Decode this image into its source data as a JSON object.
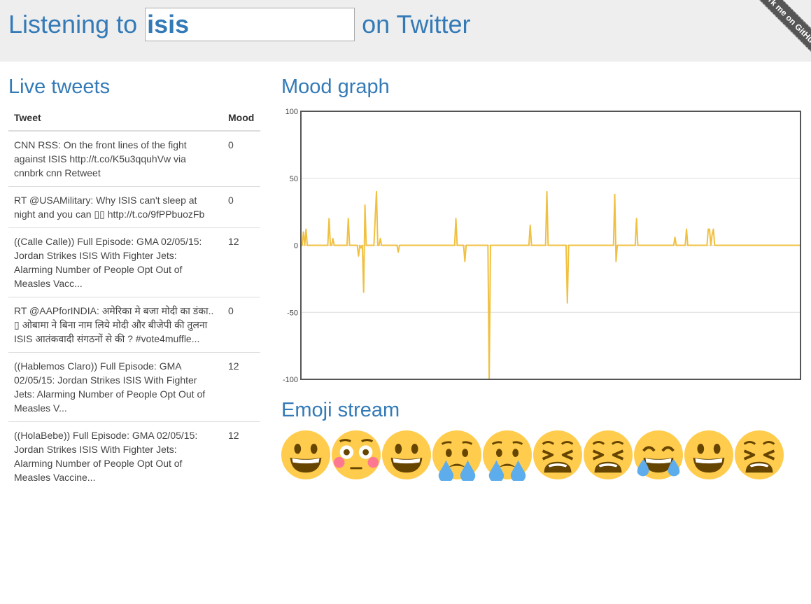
{
  "header": {
    "prefix": "Listening to",
    "topic_value": "isis",
    "suffix": "on Twitter",
    "ribbon_text": "Fork me on GitHub"
  },
  "tweets": {
    "heading": "Live tweets",
    "columns": [
      "Tweet",
      "Mood"
    ],
    "rows": [
      {
        "text": "CNN RSS: On the front lines of the fight against ISIS http://t.co/K5u3qquhVw via cnnbrk cnn Retweet",
        "mood": "0"
      },
      {
        "text": "RT @USAMilitary: Why ISIS can't sleep at night and you can ▯▯ http://t.co/9fPPbuozFb",
        "mood": "0"
      },
      {
        "text": "((Calle Calle)) Full Episode: GMA 02/05/15: Jordan Strikes ISIS With Fighter Jets: Alarming Number of People Opt Out of Measles Vacc...",
        "mood": "12"
      },
      {
        "text": "RT @AAPforINDIA: अमेरिका मे बजा मोदी का डंका.. ▯ ओबामा ने बिना नाम लिये मोदी और बीजेपी की तुलना ISIS आतंकवादी संगठनों से की ? #vote4muffle...",
        "mood": "0"
      },
      {
        "text": "((Hablemos Claro)) Full Episode: GMA 02/05/15: Jordan Strikes ISIS With Fighter Jets: Alarming Number of People Opt Out of Measles V...",
        "mood": "12"
      },
      {
        "text": "((HolaBebe)) Full Episode: GMA 02/05/15: Jordan Strikes ISIS With Fighter Jets: Alarming Number of People Opt Out of Measles Vaccine...",
        "mood": "12"
      }
    ]
  },
  "mood_graph": {
    "heading": "Mood graph"
  },
  "chart_data": {
    "type": "line",
    "title": "",
    "xlabel": "",
    "ylabel": "",
    "ylim": [
      -100,
      100
    ],
    "yticks": [
      100,
      50,
      0,
      -50,
      -100
    ],
    "grid": true,
    "line_color": "#f0c040",
    "series": [
      {
        "values": [
          0,
          0,
          10,
          0,
          12,
          0,
          0,
          0,
          0,
          0,
          0,
          0,
          0,
          0,
          0,
          0,
          0,
          0,
          0,
          0,
          0,
          0,
          20,
          0,
          0,
          5,
          0,
          0,
          0,
          0,
          0,
          0,
          0,
          0,
          0,
          0,
          0,
          20,
          0,
          0,
          0,
          0,
          0,
          0,
          0,
          -8,
          0,
          -2,
          0,
          -35,
          30,
          0,
          0,
          0,
          0,
          0,
          0,
          0,
          20,
          40,
          0,
          0,
          5,
          0,
          0,
          0,
          0,
          0,
          0,
          0,
          0,
          0,
          0,
          0,
          0,
          0,
          -5,
          0,
          0,
          0,
          0,
          0,
          0,
          0,
          0,
          0,
          0,
          0,
          0,
          0,
          0,
          0,
          0,
          0,
          0,
          0,
          0,
          0,
          0,
          0,
          0,
          0,
          0,
          0,
          0,
          0,
          0,
          0,
          0,
          0,
          0,
          0,
          0,
          0,
          0,
          0,
          0,
          0,
          0,
          0,
          0,
          20,
          0,
          0,
          0,
          0,
          0,
          0,
          -12,
          0,
          0,
          0,
          0,
          0,
          0,
          0,
          0,
          0,
          0,
          0,
          0,
          0,
          0,
          0,
          0,
          0,
          0,
          -100,
          0,
          0,
          0,
          0,
          0,
          0,
          0,
          0,
          0,
          0,
          0,
          0,
          0,
          0,
          0,
          0,
          0,
          0,
          0,
          0,
          0,
          0,
          0,
          0,
          0,
          0,
          0,
          0,
          0,
          0,
          0,
          15,
          0,
          0,
          0,
          0,
          0,
          0,
          0,
          0,
          0,
          0,
          0,
          0,
          40,
          0,
          0,
          0,
          0,
          0,
          0,
          0,
          0,
          0,
          0,
          0,
          0,
          0,
          0,
          0,
          -43,
          0,
          0,
          0,
          0,
          0,
          0,
          0,
          0,
          0,
          0,
          0,
          0,
          0,
          0,
          0,
          0,
          0,
          0,
          0,
          0,
          0,
          0,
          0,
          0,
          0,
          0,
          0,
          0,
          0,
          0,
          0,
          0,
          0,
          0,
          0,
          0,
          38,
          -12,
          0,
          0,
          0,
          0,
          0,
          0,
          0,
          0,
          0,
          0,
          0,
          0,
          0,
          0,
          0,
          20,
          0,
          0,
          0,
          0,
          0,
          0,
          0,
          0,
          0,
          0,
          0,
          0,
          0,
          0,
          0,
          0,
          0,
          0,
          0,
          0,
          0,
          0,
          0,
          0,
          0,
          0,
          0,
          0,
          0,
          6,
          0,
          0,
          0,
          0,
          0,
          0,
          0,
          0,
          12,
          0,
          0,
          0,
          0,
          0,
          0,
          0,
          0,
          0,
          0,
          0,
          0,
          0,
          0,
          0,
          0,
          12,
          12,
          0,
          8,
          12,
          0,
          0,
          0,
          0,
          0,
          0,
          0,
          0,
          0,
          0,
          0,
          0,
          0,
          0,
          0,
          0,
          0,
          0,
          0,
          0,
          0,
          0,
          0,
          0,
          0,
          0,
          0,
          0,
          0,
          0,
          0,
          0,
          0,
          0,
          0,
          0,
          0,
          0,
          0,
          0,
          0,
          0,
          0,
          0,
          0,
          0,
          0,
          0,
          0,
          0,
          0,
          0,
          0,
          0,
          0,
          0,
          0,
          0,
          0,
          0,
          0,
          0,
          0,
          0,
          0,
          0,
          0,
          0
        ]
      }
    ]
  },
  "emoji_stream": {
    "heading": "Emoji stream",
    "items": [
      "grinning-face",
      "flushed-face",
      "grinning-face",
      "crying-face",
      "crying-face",
      "weary-face",
      "weary-face",
      "tears-of-joy-face",
      "grinning-face",
      "weary-face"
    ]
  }
}
